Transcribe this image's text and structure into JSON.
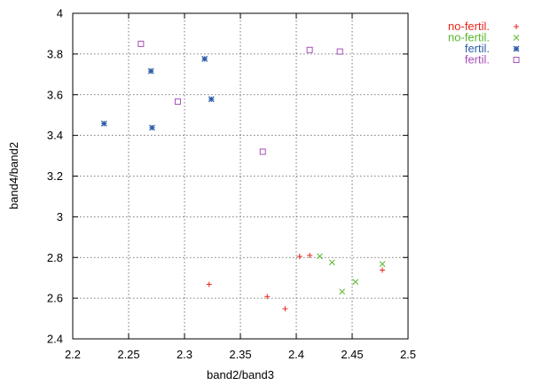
{
  "chart_data": {
    "type": "scatter",
    "title": "",
    "xlabel": "band2/band3",
    "ylabel": "band4/band2",
    "xlim": [
      2.2,
      2.5
    ],
    "ylim": [
      2.4,
      4.0
    ],
    "x_ticks": [
      "2.2",
      "2.25",
      "2.3",
      "2.35",
      "2.4",
      "2.45",
      "2.5"
    ],
    "y_ticks": [
      "2.4",
      "2.6",
      "2.8",
      "3",
      "3.2",
      "3.4",
      "3.6",
      "3.8",
      "4"
    ],
    "x_tick_values": [
      2.2,
      2.25,
      2.3,
      2.35,
      2.4,
      2.45,
      2.5
    ],
    "y_tick_values": [
      2.4,
      2.6,
      2.8,
      3.0,
      3.2,
      3.4,
      3.6,
      3.8,
      4.0
    ],
    "grid": true,
    "legend_position": "outside-top-right",
    "series": [
      {
        "name": "no-fertil.",
        "marker": "plus",
        "color": "#e8251c",
        "points": [
          [
            2.322,
            2.668
          ],
          [
            2.374,
            2.608
          ],
          [
            2.39,
            2.548
          ],
          [
            2.403,
            2.805
          ],
          [
            2.412,
            2.81
          ],
          [
            2.477,
            2.738
          ]
        ]
      },
      {
        "name": "no-fertil.",
        "marker": "cross",
        "color": "#5ab72c",
        "points": [
          [
            2.421,
            2.806
          ],
          [
            2.432,
            2.776
          ],
          [
            2.441,
            2.632
          ],
          [
            2.453,
            2.68
          ],
          [
            2.477,
            2.768
          ]
        ]
      },
      {
        "name": "fertil.",
        "marker": "star",
        "color": "#2d5ea8",
        "points": [
          [
            2.228,
            3.458
          ],
          [
            2.27,
            3.716
          ],
          [
            2.271,
            3.438
          ],
          [
            2.318,
            3.776
          ],
          [
            2.324,
            3.578
          ]
        ]
      },
      {
        "name": "fertil.",
        "marker": "square",
        "color": "#a94fb9",
        "points": [
          [
            2.261,
            3.85
          ],
          [
            2.294,
            3.566
          ],
          [
            2.37,
            3.32
          ],
          [
            2.412,
            3.82
          ],
          [
            2.439,
            3.812
          ]
        ]
      }
    ]
  }
}
